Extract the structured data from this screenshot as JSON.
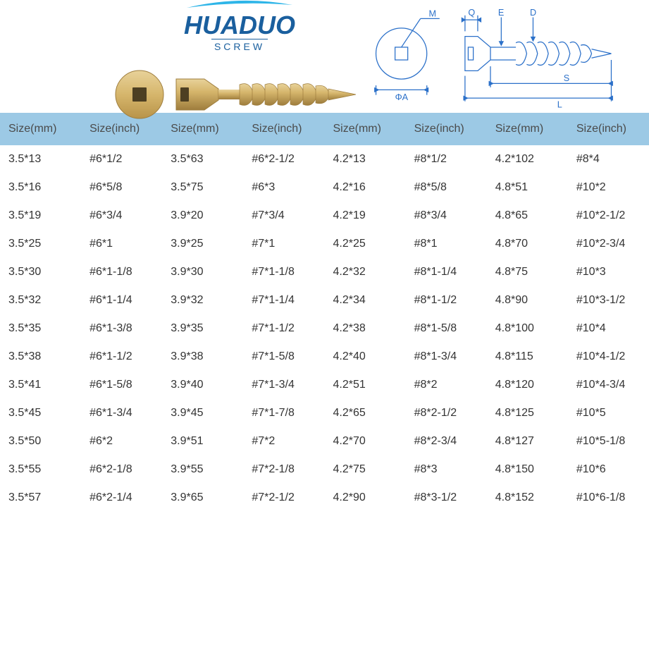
{
  "brand": {
    "name": "HUADUO",
    "sub": "SCREW",
    "brand_color": "#1a5f9e",
    "swoosh_color": "#2eb5e8"
  },
  "diagram": {
    "labels": {
      "M": "M",
      "Q": "Q",
      "E": "E",
      "D": "D",
      "S": "S",
      "L": "L",
      "A": "ΦA"
    },
    "line_color": "#2b70c9"
  },
  "screw_colors": {
    "body": "#d6b66c",
    "shadow": "#b8944a",
    "light": "#e8d29a",
    "square": "#6b5a34"
  },
  "table": {
    "header_bg": "#9cc9e5",
    "columns": [
      "Size(mm)",
      "Size(inch)",
      "Size(mm)",
      "Size(inch)",
      "Size(mm)",
      "Size(inch)",
      "Size(mm)",
      "Size(inch)"
    ],
    "rows": [
      [
        "3.5*13",
        "#6*1/2",
        "3.5*63",
        "#6*2-1/2",
        "4.2*13",
        "#8*1/2",
        "4.2*102",
        "#8*4"
      ],
      [
        "3.5*16",
        "#6*5/8",
        "3.5*75",
        "#6*3",
        "4.2*16",
        "#8*5/8",
        "4.8*51",
        "#10*2"
      ],
      [
        "3.5*19",
        "#6*3/4",
        "3.9*20",
        "#7*3/4",
        "4.2*19",
        "#8*3/4",
        "4.8*65",
        "#10*2-1/2"
      ],
      [
        "3.5*25",
        "#6*1",
        "3.9*25",
        "#7*1",
        "4.2*25",
        "#8*1",
        "4.8*70",
        "#10*2-3/4"
      ],
      [
        "3.5*30",
        "#6*1-1/8",
        "3.9*30",
        "#7*1-1/8",
        "4.2*32",
        "#8*1-1/4",
        "4.8*75",
        "#10*3"
      ],
      [
        "3.5*32",
        "#6*1-1/4",
        "3.9*32",
        "#7*1-1/4",
        "4.2*34",
        "#8*1-1/2",
        "4.8*90",
        "#10*3-1/2"
      ],
      [
        "3.5*35",
        "#6*1-3/8",
        "3.9*35",
        "#7*1-1/2",
        "4.2*38",
        "#8*1-5/8",
        "4.8*100",
        "#10*4"
      ],
      [
        "3.5*38",
        "#6*1-1/2",
        "3.9*38",
        "#7*1-5/8",
        "4.2*40",
        "#8*1-3/4",
        "4.8*115",
        "#10*4-1/2"
      ],
      [
        "3.5*41",
        "#6*1-5/8",
        "3.9*40",
        "#7*1-3/4",
        "4.2*51",
        "#8*2",
        "4.8*120",
        "#10*4-3/4"
      ],
      [
        "3.5*45",
        "#6*1-3/4",
        "3.9*45",
        "#7*1-7/8",
        "4.2*65",
        "#8*2-1/2",
        "4.8*125",
        "#10*5"
      ],
      [
        "3.5*50",
        "#6*2",
        "3.9*51",
        "#7*2",
        "4.2*70",
        "#8*2-3/4",
        "4.8*127",
        "#10*5-1/8"
      ],
      [
        "3.5*55",
        "#6*2-1/8",
        "3.9*55",
        "#7*2-1/8",
        "4.2*75",
        "#8*3",
        "4.8*150",
        "#10*6"
      ],
      [
        "3.5*57",
        "#6*2-1/4",
        "3.9*65",
        "#7*2-1/2",
        "4.2*90",
        "#8*3-1/2",
        "4.8*152",
        "#10*6-1/8"
      ]
    ]
  }
}
